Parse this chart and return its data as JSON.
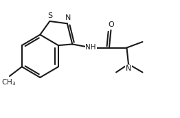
{
  "background_color": "#ffffff",
  "line_color": "#1a1a1a",
  "line_width": 1.5,
  "figsize": [
    2.62,
    1.72
  ],
  "dpi": 100,
  "xlim": [
    0.0,
    1.0
  ],
  "ylim": [
    0.0,
    1.0
  ]
}
